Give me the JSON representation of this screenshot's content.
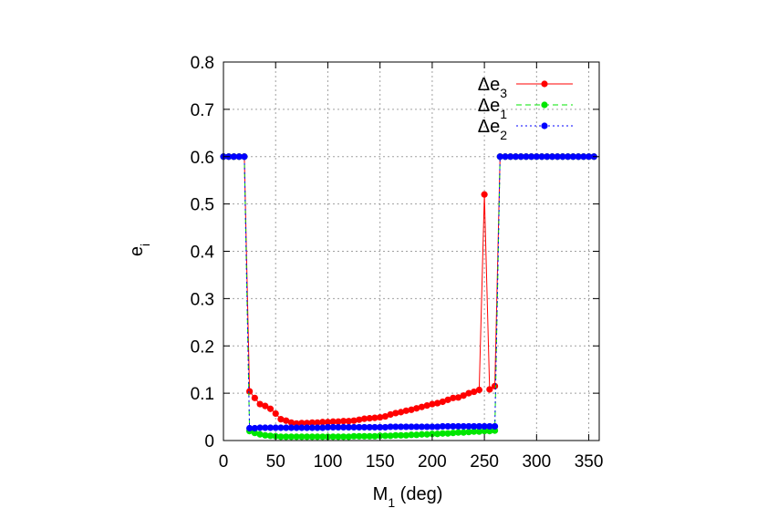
{
  "chart_data": {
    "type": "line",
    "title": "",
    "xlabel": {
      "main": "M",
      "sub": "1",
      "rest": " (deg)"
    },
    "ylabel": {
      "main": "e",
      "sub": "i"
    },
    "xlim": [
      0,
      360
    ],
    "ylim": [
      0,
      0.8
    ],
    "xticks": [
      0,
      50,
      100,
      150,
      200,
      250,
      300,
      350
    ],
    "yticks": [
      0,
      0.1,
      0.2,
      0.3,
      0.4,
      0.5,
      0.6,
      0.7,
      0.8
    ],
    "grid": true,
    "legend_position": "top-right",
    "x": [
      0,
      5,
      10,
      15,
      20,
      25,
      30,
      35,
      40,
      45,
      50,
      55,
      60,
      65,
      70,
      75,
      80,
      85,
      90,
      95,
      100,
      105,
      110,
      115,
      120,
      125,
      130,
      135,
      140,
      145,
      150,
      155,
      160,
      165,
      170,
      175,
      180,
      185,
      190,
      195,
      200,
      205,
      210,
      215,
      220,
      225,
      230,
      235,
      240,
      245,
      250,
      255,
      260,
      265,
      270,
      275,
      280,
      285,
      290,
      295,
      300,
      305,
      310,
      315,
      320,
      325,
      330,
      335,
      340,
      345,
      350,
      355
    ],
    "series": [
      {
        "name": {
          "main": "Δe",
          "sub": "3"
        },
        "color": "#ff0000",
        "style": "solid",
        "values": [
          0.6,
          0.6,
          0.6,
          0.6,
          0.6,
          0.104,
          0.09,
          0.077,
          0.073,
          0.067,
          0.057,
          0.045,
          0.042,
          0.038,
          0.036,
          0.037,
          0.037,
          0.038,
          0.038,
          0.039,
          0.039,
          0.04,
          0.04,
          0.041,
          0.041,
          0.042,
          0.044,
          0.046,
          0.047,
          0.048,
          0.049,
          0.051,
          0.055,
          0.058,
          0.06,
          0.063,
          0.065,
          0.068,
          0.071,
          0.074,
          0.077,
          0.079,
          0.082,
          0.086,
          0.09,
          0.091,
          0.095,
          0.1,
          0.103,
          0.107,
          0.52,
          0.108,
          0.115,
          0.6,
          0.6,
          0.6,
          0.6,
          0.6,
          0.6,
          0.6,
          0.6,
          0.6,
          0.6,
          0.6,
          0.6,
          0.6,
          0.6,
          0.6,
          0.6,
          0.6,
          0.6,
          0.6
        ]
      },
      {
        "name": {
          "main": "Δe",
          "sub": "1"
        },
        "color": "#00e600",
        "style": "dashed",
        "values": [
          0.6,
          0.6,
          0.6,
          0.6,
          0.6,
          0.02,
          0.016,
          0.013,
          0.011,
          0.01,
          0.009,
          0.008,
          0.008,
          0.008,
          0.008,
          0.008,
          0.008,
          0.008,
          0.008,
          0.008,
          0.008,
          0.008,
          0.008,
          0.008,
          0.008,
          0.009,
          0.009,
          0.009,
          0.009,
          0.009,
          0.01,
          0.01,
          0.01,
          0.011,
          0.011,
          0.011,
          0.012,
          0.012,
          0.013,
          0.013,
          0.014,
          0.014,
          0.015,
          0.015,
          0.016,
          0.017,
          0.017,
          0.018,
          0.019,
          0.019,
          0.02,
          0.02,
          0.021,
          0.6,
          0.6,
          0.6,
          0.6,
          0.6,
          0.6,
          0.6,
          0.6,
          0.6,
          0.6,
          0.6,
          0.6,
          0.6,
          0.6,
          0.6,
          0.6,
          0.6,
          0.6,
          0.6
        ]
      },
      {
        "name": {
          "main": "Δe",
          "sub": "2"
        },
        "color": "#0000ff",
        "style": "dotted",
        "values": [
          0.6,
          0.6,
          0.6,
          0.6,
          0.6,
          0.026,
          0.026,
          0.027,
          0.027,
          0.027,
          0.027,
          0.027,
          0.027,
          0.027,
          0.027,
          0.027,
          0.027,
          0.027,
          0.027,
          0.027,
          0.028,
          0.028,
          0.028,
          0.028,
          0.028,
          0.028,
          0.028,
          0.028,
          0.028,
          0.028,
          0.028,
          0.028,
          0.029,
          0.029,
          0.029,
          0.029,
          0.029,
          0.029,
          0.029,
          0.029,
          0.029,
          0.029,
          0.03,
          0.03,
          0.03,
          0.03,
          0.03,
          0.03,
          0.03,
          0.03,
          0.03,
          0.03,
          0.03,
          0.6,
          0.6,
          0.6,
          0.6,
          0.6,
          0.6,
          0.6,
          0.6,
          0.6,
          0.6,
          0.6,
          0.6,
          0.6,
          0.6,
          0.6,
          0.6,
          0.6,
          0.6,
          0.6
        ]
      }
    ]
  }
}
